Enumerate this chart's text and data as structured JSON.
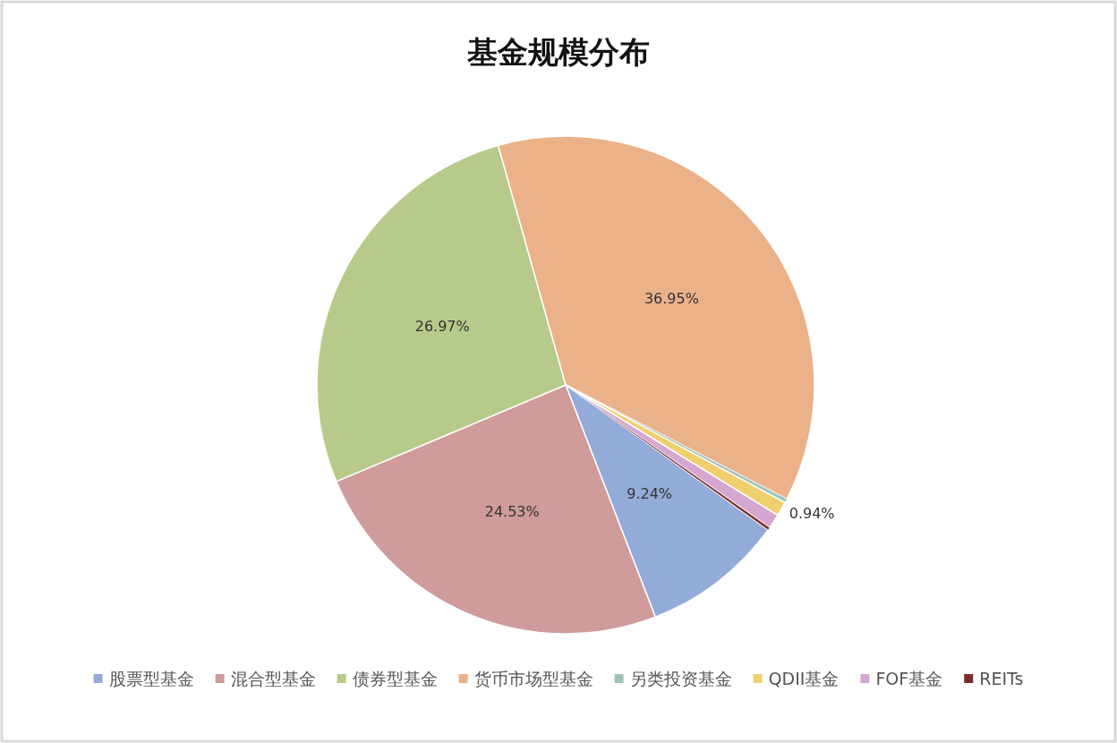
{
  "chart_data": {
    "type": "pie",
    "title": "基金规模分布",
    "categories": [
      "股票型基金",
      "混合型基金",
      "债券型基金",
      "货币市场型基金",
      "另类投资基金",
      "QDII基金",
      "FOF基金",
      "REITs"
    ],
    "values": [
      9.24,
      24.53,
      26.97,
      36.95,
      0.25,
      0.94,
      0.95,
      0.17
    ],
    "colors": [
      "#93abd9",
      "#cf9b9b",
      "#b7ca8a",
      "#ebb189",
      "#9dc4bb",
      "#f0cf6f",
      "#d5a6cf",
      "#7b2a27"
    ],
    "value_labels": [
      "9.24%",
      "24.53%",
      "26.97%",
      "36.95%",
      null,
      "0.94%",
      null,
      null
    ],
    "legend": "bottom"
  }
}
